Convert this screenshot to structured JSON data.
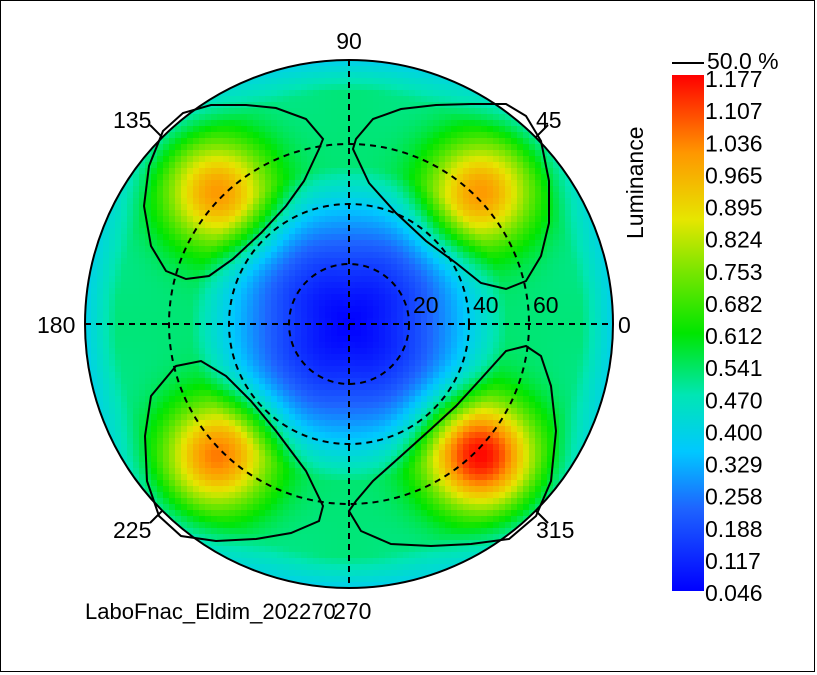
{
  "chart_data": {
    "type": "heatmap",
    "projection": "polar",
    "colorbar_label": "Luminance",
    "contour_label": "50.0 %",
    "colorbar_ticks": [
      "1.177",
      "1.107",
      "1.036",
      "0.965",
      "0.895",
      "0.824",
      "0.753",
      "0.682",
      "0.612",
      "0.541",
      "0.470",
      "0.400",
      "0.329",
      "0.258",
      "0.188",
      "0.117",
      "0.046"
    ],
    "value_range": [
      0.046,
      1.177
    ],
    "angle_labels": [
      {
        "angle": 90,
        "text": "90"
      },
      {
        "angle": 45,
        "text": "45"
      },
      {
        "angle": 135,
        "text": "135"
      },
      {
        "angle": 180,
        "text": "180"
      },
      {
        "angle": 0,
        "text": "0"
      },
      {
        "angle": 225,
        "text": "225"
      },
      {
        "angle": 315,
        "text": "315"
      },
      {
        "angle": 270,
        "text": "270"
      }
    ],
    "radial_labels": [
      "20",
      "40",
      "60"
    ],
    "radial_rings": [
      20,
      40,
      60
    ],
    "radial_max": 88,
    "lobes": [
      {
        "angle": 45,
        "peak": 0.98
      },
      {
        "angle": 135,
        "peak": 0.98
      },
      {
        "angle": 225,
        "peak": 1.02
      },
      {
        "angle": 315,
        "peak": 1.15
      }
    ],
    "center_value": 0.05,
    "footer": "LaboFnac_Eldim_202270"
  }
}
